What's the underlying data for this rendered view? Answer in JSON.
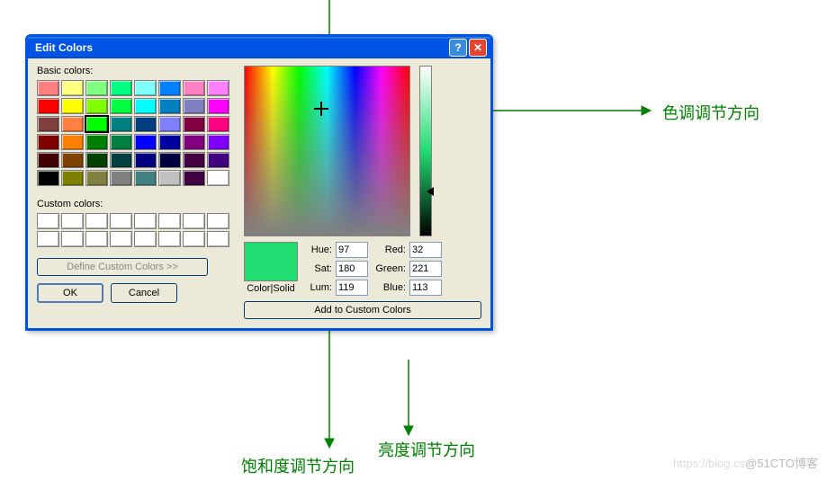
{
  "dialog": {
    "title": "Edit Colors",
    "basic_colors_label": "Basic colors:",
    "custom_colors_label": "Custom colors:",
    "define_custom_label": "Define Custom Colors >>",
    "ok_label": "OK",
    "cancel_label": "Cancel",
    "color_solid_label": "Color|Solid",
    "add_to_custom_label": "Add to Custom Colors",
    "fields": {
      "hue_label": "Hue:",
      "sat_label": "Sat:",
      "lum_label": "Lum:",
      "red_label": "Red:",
      "green_label": "Green:",
      "blue_label": "Blue:",
      "hue": "97",
      "sat": "180",
      "lum": "119",
      "red": "32",
      "green": "221",
      "blue": "113"
    },
    "preview_color": "#20dd71",
    "basic_colors": [
      "#ff8080",
      "#ffff80",
      "#80ff80",
      "#00ff80",
      "#80ffff",
      "#0080ff",
      "#ff80c0",
      "#ff80ff",
      "#ff0000",
      "#ffff00",
      "#80ff00",
      "#00ff40",
      "#00ffff",
      "#0080c0",
      "#8080c0",
      "#ff00ff",
      "#804040",
      "#ff8040",
      "#00ff00",
      "#008080",
      "#004080",
      "#8080ff",
      "#800040",
      "#ff0080",
      "#800000",
      "#ff8000",
      "#008000",
      "#008040",
      "#0000ff",
      "#0000a0",
      "#800080",
      "#8000ff",
      "#400000",
      "#804000",
      "#004000",
      "#004040",
      "#000080",
      "#000040",
      "#400040",
      "#400080",
      "#000000",
      "#808000",
      "#808040",
      "#808080",
      "#408080",
      "#c0c0c0",
      "#400040",
      "#ffffff"
    ],
    "selected_swatch_index": 18,
    "custom_colors": [
      "#ffffff",
      "#ffffff",
      "#ffffff",
      "#ffffff",
      "#ffffff",
      "#ffffff",
      "#ffffff",
      "#ffffff",
      "#ffffff",
      "#ffffff",
      "#ffffff",
      "#ffffff",
      "#ffffff",
      "#ffffff",
      "#ffffff",
      "#ffffff"
    ]
  },
  "annotations": {
    "hue_arrow_label": "色调调节方向",
    "sat_arrow_label": "饱和度调节方向",
    "lum_arrow_label": "亮度调节方向",
    "arrow_color": "#008000"
  },
  "watermark": "@51CTO博客",
  "watermark_faded": "https://blog.cs"
}
